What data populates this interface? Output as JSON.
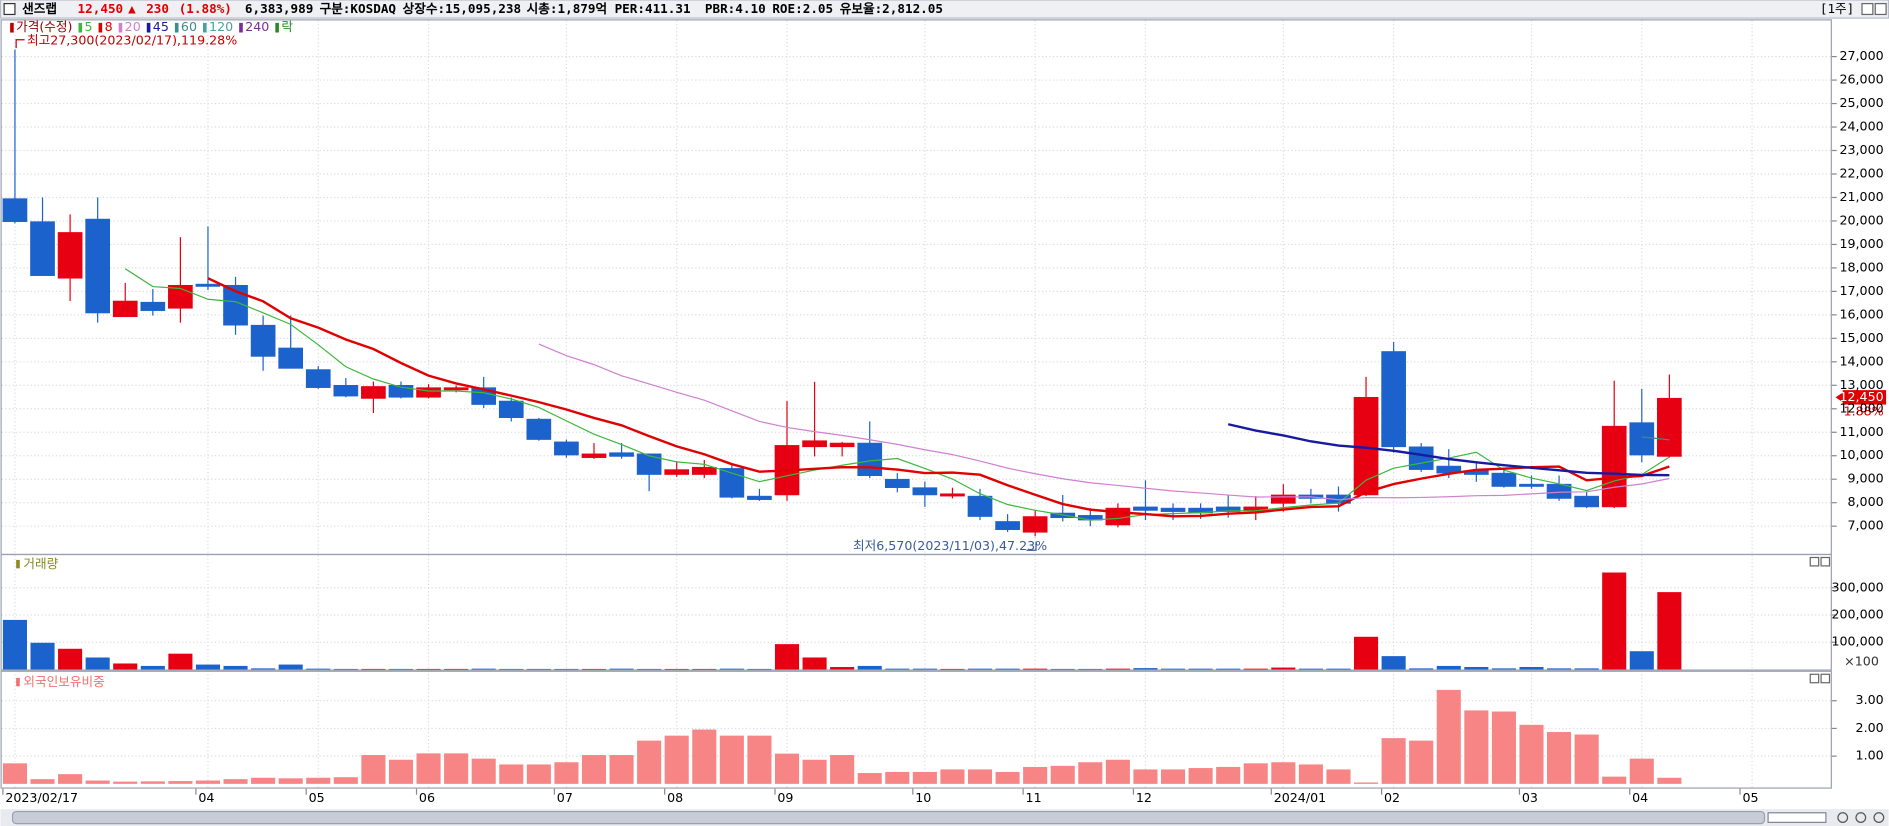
{
  "header": {
    "name": "샌즈랩",
    "price": "12,450",
    "arrow": "▲",
    "change": "230",
    "change_pct": "(1.88%)",
    "volume": "6,383,989",
    "market": "구분:KOSDAQ",
    "shares": "상장수:15,095,238",
    "cap": "시총:1,879억",
    "per": "PER:411.31",
    "pbr": "PBR:4.10",
    "roe": "ROE:2.05",
    "reserve": "유보율:2,812.05",
    "period": "[1주]"
  },
  "chart_data": [
    {
      "type": "candlestick",
      "title": "가격(수정)",
      "categories": [
        "2023/02/17",
        null,
        null,
        null,
        null,
        null,
        null,
        "04",
        null,
        null,
        null,
        "05",
        null,
        null,
        null,
        "06",
        null,
        null,
        null,
        null,
        "07",
        null,
        null,
        null,
        "08",
        null,
        null,
        null,
        "09",
        null,
        null,
        null,
        null,
        "10",
        null,
        null,
        null,
        "11",
        null,
        null,
        null,
        "12",
        null,
        null,
        null,
        null,
        "2024/01",
        null,
        null,
        null,
        "02",
        null,
        null,
        null,
        null,
        "03",
        null,
        null,
        null,
        "04",
        null,
        null,
        null,
        "05"
      ],
      "open": [
        20950,
        19970,
        17560,
        20080,
        15920,
        16540,
        16280,
        17310,
        17260,
        15560,
        14590,
        13670,
        13000,
        12440,
        13000,
        12490,
        12800,
        12900,
        12330,
        11560,
        10590,
        9920,
        10130,
        10080,
        9200,
        9200,
        9460,
        8280,
        8330,
        10380,
        10380,
        10540,
        9000,
        8640,
        8280,
        8280,
        7200,
        6740,
        7560,
        7460,
        7050,
        7820,
        7770,
        7770,
        7820,
        7670,
        7970,
        8330,
        8330,
        8330,
        14440,
        10380,
        9560,
        9360,
        9260,
        8790,
        8790,
        8280,
        7820,
        11410,
        9970,
        null,
        null,
        null
      ],
      "high": [
        27300,
        21000,
        20280,
        21000,
        17360,
        17100,
        19310,
        19770,
        17620,
        15970,
        15970,
        13820,
        13310,
        13160,
        13160,
        13050,
        13000,
        13360,
        12480,
        11610,
        10690,
        10540,
        10540,
        10080,
        9770,
        9820,
        9620,
        8590,
        12330,
        13150,
        10590,
        11460,
        9260,
        8900,
        8640,
        8590,
        7510,
        7670,
        8330,
        7770,
        7970,
        8950,
        7970,
        7970,
        8330,
        8280,
        8790,
        8590,
        8690,
        13360,
        14850,
        10540,
        10280,
        9670,
        9460,
        9160,
        9160,
        8480,
        13200,
        12850,
        13460,
        null,
        null,
        null
      ],
      "low": [
        19900,
        17670,
        16590,
        15670,
        15920,
        15970,
        15670,
        17060,
        15150,
        13620,
        13720,
        12850,
        12490,
        11820,
        12440,
        12440,
        12700,
        12030,
        11460,
        10640,
        9920,
        9870,
        9870,
        8490,
        9100,
        9050,
        8180,
        8080,
        8080,
        9970,
        9970,
        9050,
        8440,
        7820,
        8180,
        7260,
        6750,
        6570,
        7200,
        7000,
        6950,
        7260,
        7260,
        7310,
        7360,
        7260,
        7620,
        7970,
        7620,
        8280,
        10130,
        9310,
        9050,
        8890,
        8640,
        8590,
        8080,
        7770,
        7770,
        9720,
        9920,
        null,
        null,
        null
      ],
      "close": [
        19970,
        17670,
        19510,
        16080,
        16590,
        16180,
        17260,
        17210,
        15560,
        14230,
        13720,
        12900,
        12540,
        12950,
        12490,
        12900,
        12900,
        12180,
        11620,
        10690,
        10030,
        10080,
        9970,
        9200,
        9410,
        9510,
        8230,
        8130,
        10440,
        10640,
        10540,
        9150,
        8640,
        8330,
        8380,
        7410,
        6850,
        7410,
        7360,
        7260,
        7770,
        7670,
        7620,
        7560,
        7620,
        7820,
        8330,
        8180,
        7970,
        12490,
        10380,
        9410,
        9260,
        9200,
        8690,
        8690,
        8180,
        7820,
        11260,
        10030,
        12450,
        null,
        null,
        null
      ],
      "up_color": "#e60012",
      "down_color": "#1c62cc",
      "ma": [
        {
          "name": 5,
          "color": "#3cb83c",
          "width": 1
        },
        {
          "name": 8,
          "color": "#e00000",
          "width": 2
        },
        {
          "name": 20,
          "color": "#d080d0",
          "width": 1
        },
        {
          "name": 45,
          "color": "#1a1aa0",
          "width": 2
        },
        {
          "name": 60,
          "color": "#3c8c8c",
          "width": 1
        },
        {
          "name": 120,
          "color": "#4aa0a0",
          "width": 1
        },
        {
          "name": 240,
          "color": "#7b2d9b",
          "width": 1
        }
      ],
      "lock_label": "락",
      "high_annotation": "최고27,300(2023/02/17),119.28%",
      "low_annotation": "최저6,570(2023/11/03),47.23%",
      "price_tag_pct": "1.88%",
      "ylim": [
        5820,
        28590
      ],
      "yticks": [
        {
          "value": 7000,
          "label": "7,000"
        },
        {
          "value": 8000,
          "label": "8,000"
        },
        {
          "value": 9000,
          "label": "9,000"
        },
        {
          "value": 10000,
          "label": "10,000"
        },
        {
          "value": 11000,
          "label": "11,000"
        },
        {
          "value": 12000,
          "label": "12,000"
        },
        {
          "value": 13000,
          "label": "13,000"
        },
        {
          "value": 14000,
          "label": "14,000"
        },
        {
          "value": 15000,
          "label": "15,000"
        },
        {
          "value": 16000,
          "label": "16,000"
        },
        {
          "value": 17000,
          "label": "17,000"
        },
        {
          "value": 18000,
          "label": "18,000"
        },
        {
          "value": 19000,
          "label": "19,000"
        },
        {
          "value": 20000,
          "label": "20,000"
        },
        {
          "value": 21000,
          "label": "21,000"
        },
        {
          "value": 22000,
          "label": "22,000"
        },
        {
          "value": 23000,
          "label": "23,000"
        },
        {
          "value": 24000,
          "label": "24,000"
        },
        {
          "value": 25000,
          "label": "25,000"
        },
        {
          "value": 26000,
          "label": "26,000"
        },
        {
          "value": 27000,
          "label": "27,000"
        }
      ],
      "grid": true
    },
    {
      "type": "bar",
      "title": "거래량",
      "unit_label": "×100",
      "values": [
        182000,
        98000,
        76000,
        44000,
        22000,
        13000,
        58000,
        18000,
        13000,
        4000,
        18000,
        3000,
        2000,
        2000,
        2000,
        2000,
        2000,
        3000,
        2000,
        2000,
        2000,
        2000,
        3000,
        2000,
        2000,
        2000,
        3000,
        2000,
        93000,
        44000,
        9000,
        13000,
        3000,
        3000,
        2000,
        3000,
        3000,
        3000,
        2000,
        2000,
        3000,
        5000,
        3000,
        3000,
        3000,
        3000,
        7000,
        3000,
        3000,
        120000,
        49000,
        4000,
        13000,
        9000,
        4000,
        9000,
        4000,
        4000,
        356000,
        67000,
        284000,
        null,
        null,
        null
      ],
      "ylim": [
        0,
        420000
      ],
      "yticks": [
        {
          "value": 100000,
          "label": "100,000"
        },
        {
          "value": 200000,
          "label": "200,000"
        },
        {
          "value": 300000,
          "label": "300,000"
        }
      ],
      "grid": true
    },
    {
      "type": "bar",
      "title": "외국인보유비중",
      "color": "#f88585",
      "values": [
        0.74,
        0.17,
        0.35,
        0.12,
        0.08,
        0.09,
        0.1,
        0.12,
        0.17,
        0.22,
        0.2,
        0.22,
        0.24,
        1.04,
        0.87,
        1.1,
        1.1,
        0.91,
        0.7,
        0.7,
        0.78,
        1.04,
        1.04,
        1.56,
        1.74,
        1.96,
        1.74,
        1.74,
        1.09,
        0.87,
        1.04,
        0.39,
        0.43,
        0.43,
        0.52,
        0.52,
        0.43,
        0.61,
        0.65,
        0.78,
        0.87,
        0.52,
        0.52,
        0.57,
        0.61,
        0.74,
        0.78,
        0.7,
        0.52,
        0.05,
        1.65,
        1.56,
        3.39,
        2.65,
        2.61,
        2.13,
        1.87,
        1.78,
        0.26,
        0.91,
        0.22,
        null,
        null,
        null
      ],
      "ylim": [
        0,
        4.04
      ],
      "yticks": [
        {
          "value": 1,
          "label": "1.00"
        },
        {
          "value": 2,
          "label": "2.00"
        },
        {
          "value": 3,
          "label": "3.00"
        }
      ],
      "grid": true
    }
  ]
}
